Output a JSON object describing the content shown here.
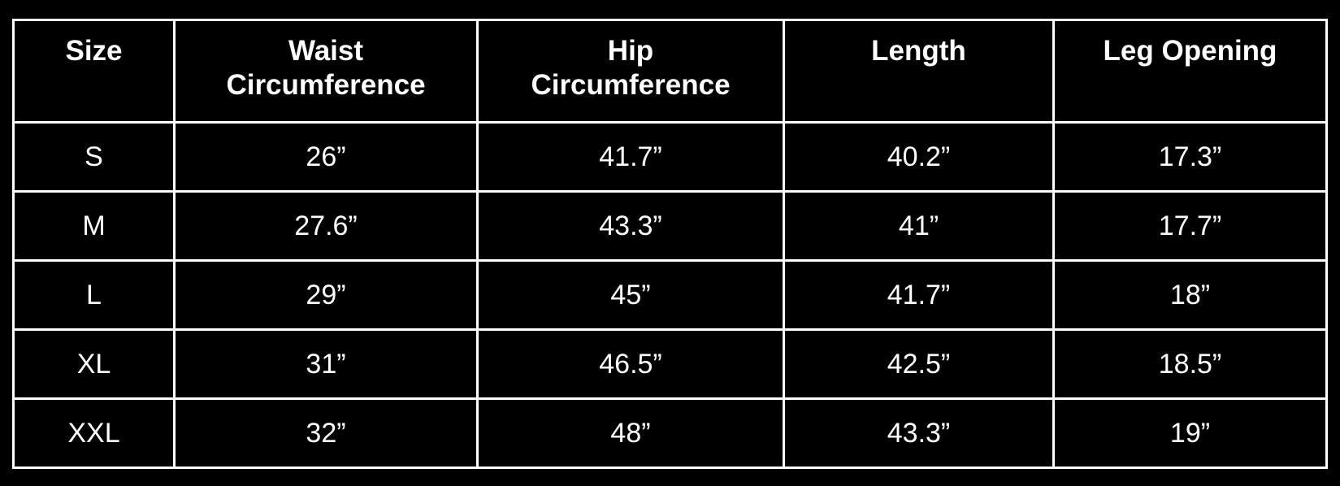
{
  "colors": {
    "background": "#000000",
    "text": "#ffffff",
    "border": "#ffffff"
  },
  "chart_data": {
    "type": "table",
    "title": "",
    "columns": [
      "Size",
      "Waist Circumference",
      "Hip Circumference",
      "Length",
      "Leg Opening"
    ],
    "rows": [
      [
        "S",
        "26”",
        "41.7”",
        "40.2”",
        "17.3”"
      ],
      [
        "M",
        "27.6”",
        "43.3”",
        "41”",
        "17.7”"
      ],
      [
        "L",
        "29”",
        "45”",
        "41.7”",
        "18”"
      ],
      [
        "XL",
        "31”",
        "46.5”",
        "42.5”",
        "18.5”"
      ],
      [
        "XXL",
        "32”",
        "48”",
        "43.3”",
        "19”"
      ]
    ]
  }
}
